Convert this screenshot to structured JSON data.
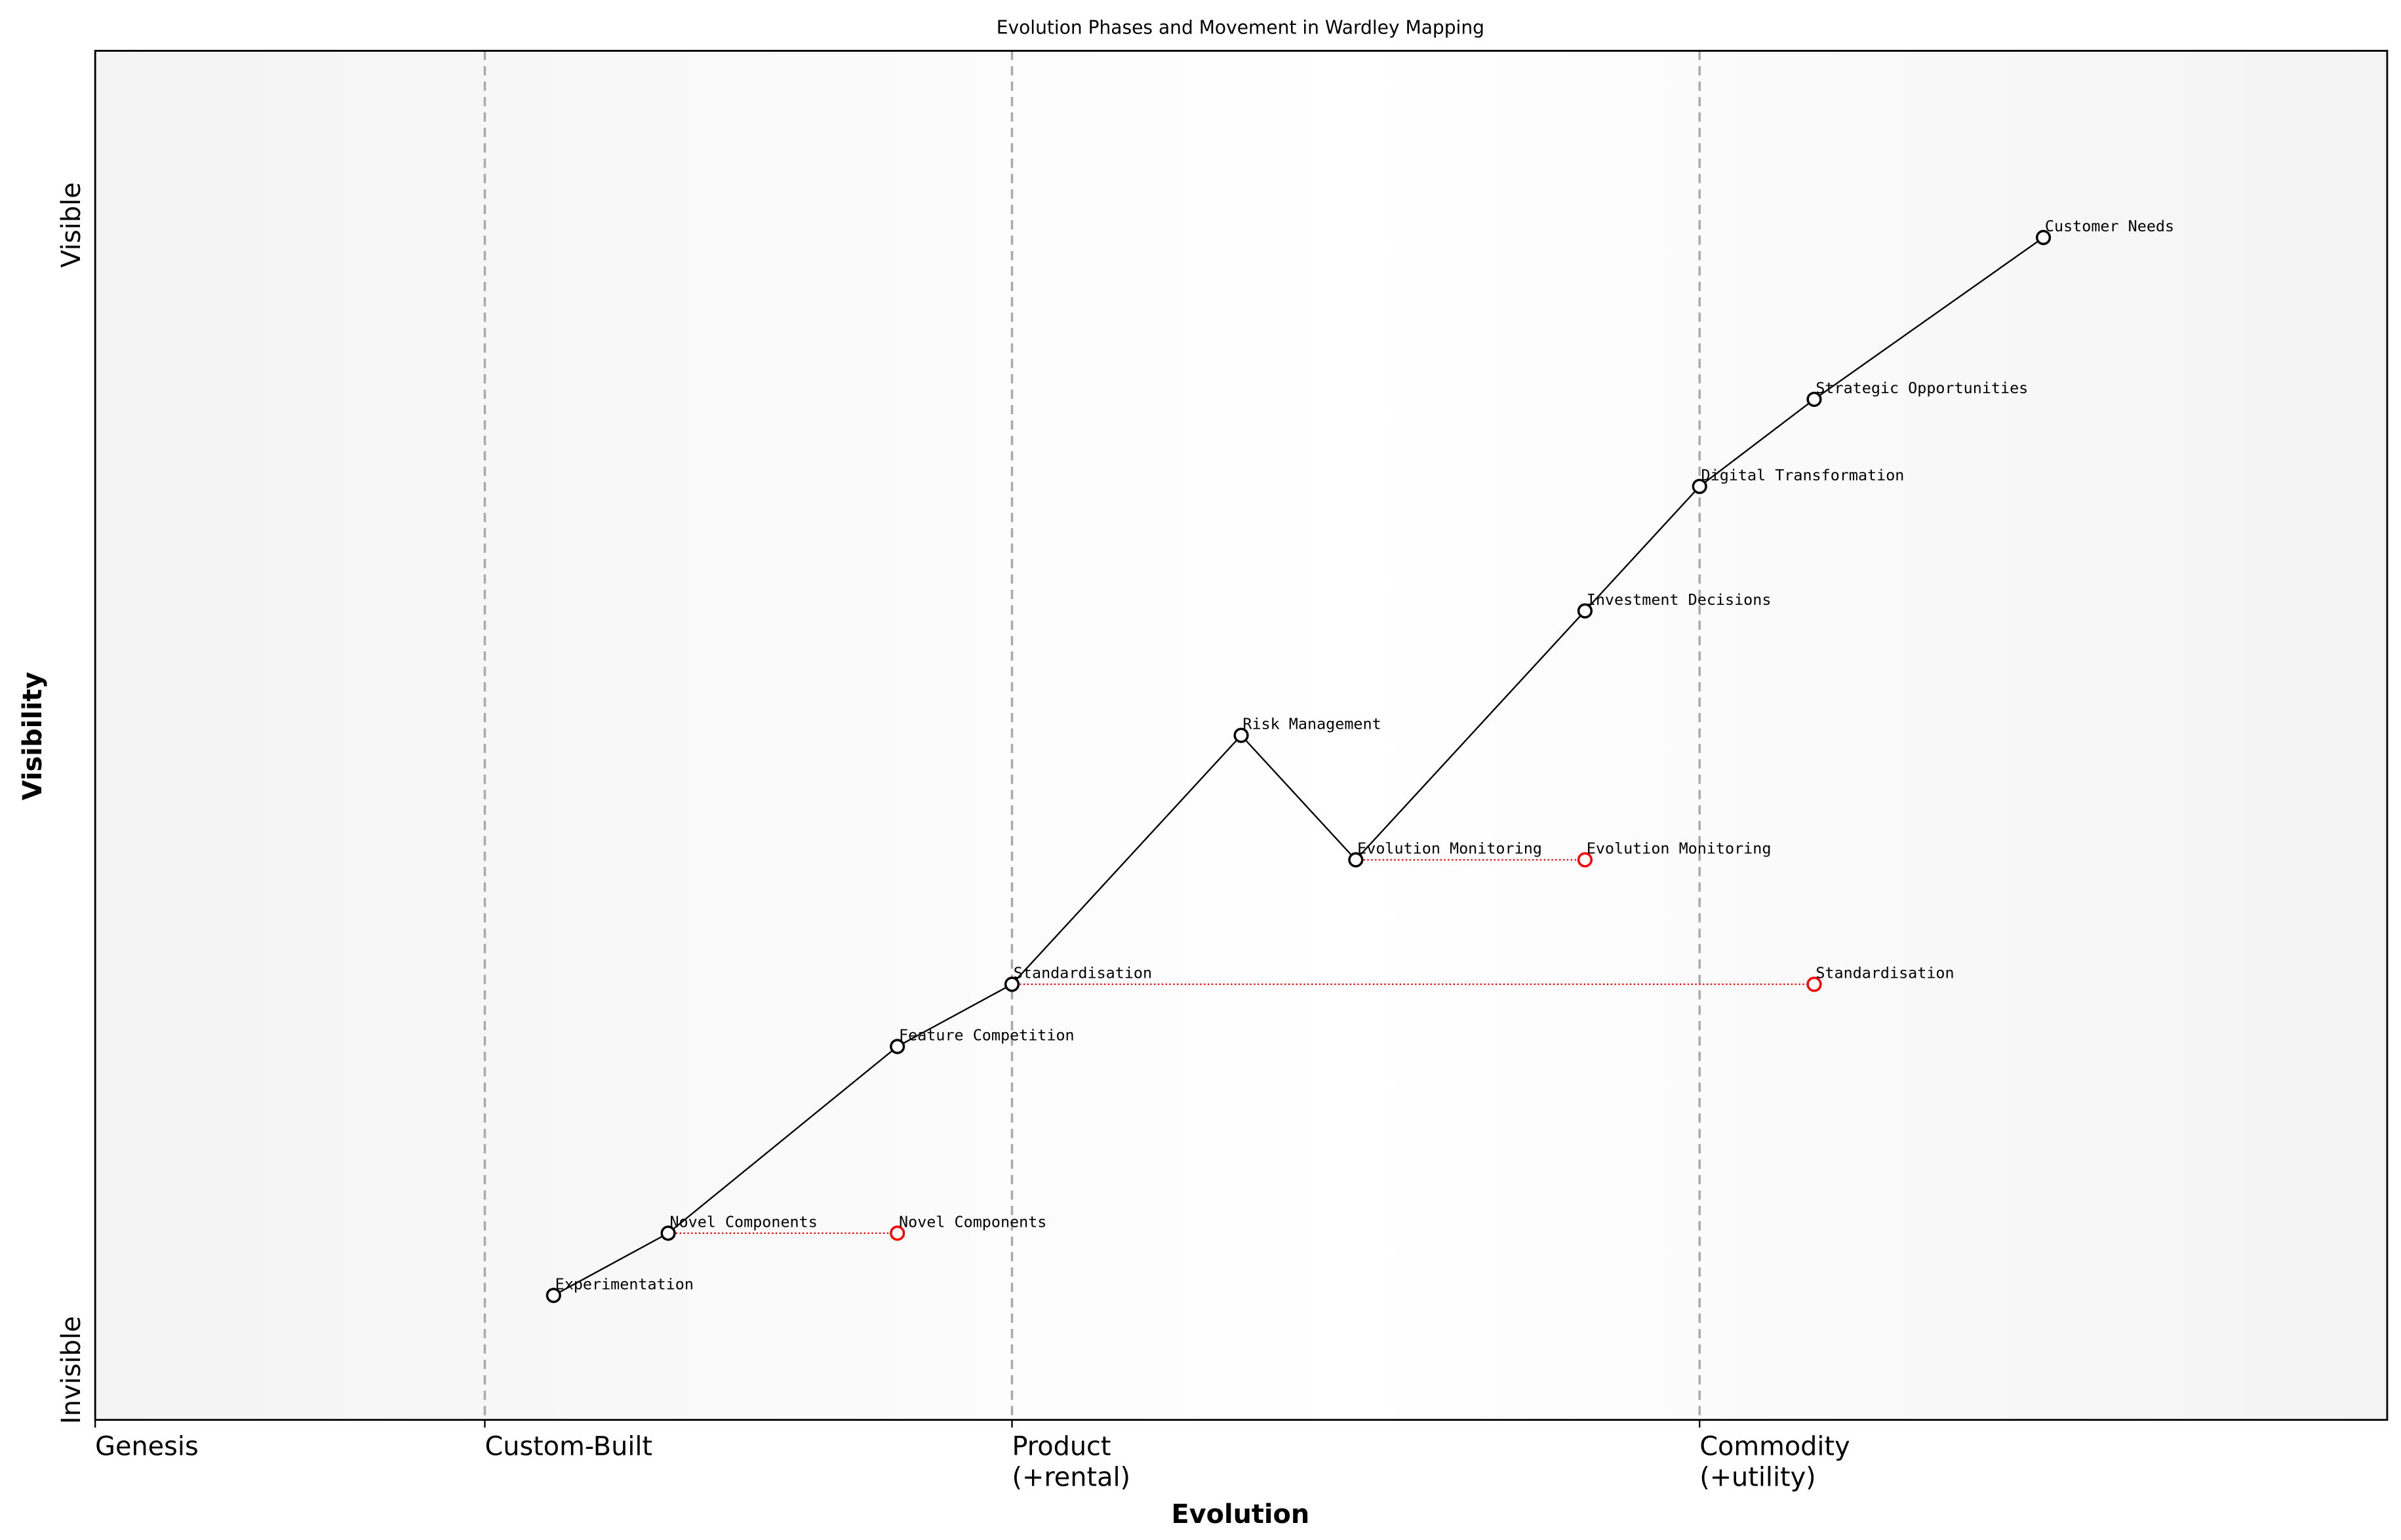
{
  "chart_data": {
    "type": "line",
    "title": "Evolution Phases and Movement in Wardley Mapping",
    "xlabel": "Evolution",
    "ylabel": "Visibility",
    "xlim": [
      0,
      1
    ],
    "ylim": [
      0,
      1.1
    ],
    "grid": false,
    "x_ticks": [
      {
        "value": 0,
        "label": "Genesis"
      },
      {
        "value": 0.17,
        "label": "Custom-Built"
      },
      {
        "value": 0.4,
        "label": "Product\n(+rental)"
      },
      {
        "value": 0.7,
        "label": "Commodity\n(+utility)"
      }
    ],
    "y_ticks": [
      {
        "value": 0.04,
        "label": "Invisible"
      },
      {
        "value": 0.96,
        "label": "Visible"
      }
    ],
    "phase_boundaries": [
      0.17,
      0.4,
      0.7
    ],
    "components": [
      {
        "name": "Experimentation",
        "x": 0.2,
        "y": 0.1
      },
      {
        "name": "Novel Components",
        "x": 0.25,
        "y": 0.15
      },
      {
        "name": "Feature Competition",
        "x": 0.35,
        "y": 0.3
      },
      {
        "name": "Standardisation",
        "x": 0.4,
        "y": 0.35
      },
      {
        "name": "Risk Management",
        "x": 0.5,
        "y": 0.55
      },
      {
        "name": "Evolution Monitoring",
        "x": 0.55,
        "y": 0.45
      },
      {
        "name": "Investment Decisions",
        "x": 0.65,
        "y": 0.65
      },
      {
        "name": "Digital Transformation",
        "x": 0.7,
        "y": 0.75
      },
      {
        "name": "Strategic Opportunities",
        "x": 0.75,
        "y": 0.82
      },
      {
        "name": "Customer Needs",
        "x": 0.85,
        "y": 0.95
      }
    ],
    "movements": [
      {
        "name": "Novel Components",
        "from_x": 0.25,
        "to_x": 0.35,
        "y": 0.15
      },
      {
        "name": "Evolution Monitoring",
        "from_x": 0.55,
        "to_x": 0.65,
        "y": 0.45
      },
      {
        "name": "Standardisation",
        "from_x": 0.4,
        "to_x": 0.75,
        "y": 0.35
      }
    ],
    "colors": {
      "component": "#000000",
      "movement": "#ff0000",
      "boundary": "#aaaaaa",
      "background_edge": "#f3f3f3",
      "background_mid": "#ffffff"
    }
  }
}
